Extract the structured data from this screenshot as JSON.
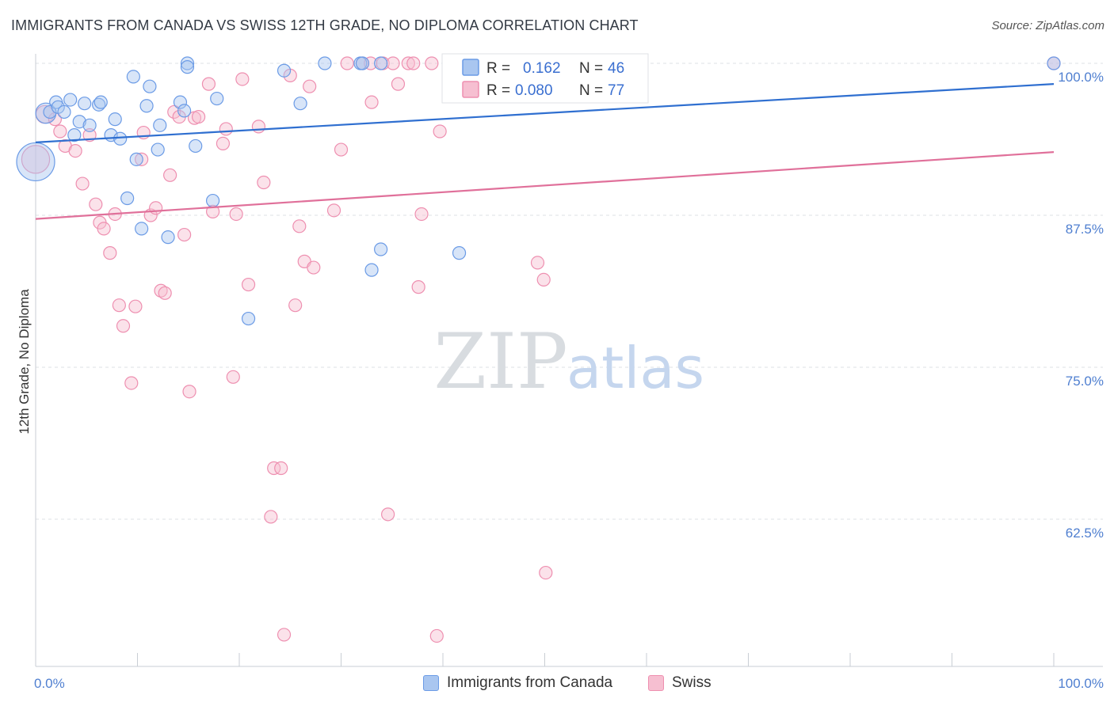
{
  "title": "IMMIGRANTS FROM CANADA VS SWISS 12TH GRADE, NO DIPLOMA CORRELATION CHART",
  "source": "Source: ZipAtlas.com",
  "watermark": {
    "zip": "ZIP",
    "atlas": "atlas"
  },
  "colors": {
    "blue": "#6b9be6",
    "blue_fill": "#a9c6f0",
    "blue_line": "#2f6fd0",
    "pink": "#ee8fb0",
    "pink_fill": "#f6bfd1",
    "pink_line": "#e0709a",
    "tick_label": "#4f7fd0",
    "grid": "#dde1e6"
  },
  "legend": {
    "rows": [
      {
        "r_label": "R =",
        "r_value": "0.162",
        "n_label": "N =",
        "n_value": "46"
      },
      {
        "r_label": "R =",
        "r_value": "0.080",
        "n_label": "N =",
        "n_value": "77"
      }
    ]
  },
  "chart_data": {
    "type": "scatter",
    "title": "IMMIGRANTS FROM CANADA VS SWISS 12TH GRADE, NO DIPLOMA CORRELATION CHART",
    "xlabel": "",
    "ylabel": "12th Grade, No Diploma",
    "xlim": [
      0,
      100
    ],
    "ylim": [
      50.5,
      101
    ],
    "x_tick_labels": [
      "0.0%",
      "100.0%"
    ],
    "y_ticks": [
      62.5,
      75.0,
      87.5,
      100.0
    ],
    "y_tick_labels": [
      "62.5%",
      "75.0%",
      "87.5%",
      "100.0%"
    ],
    "grid": true,
    "legend_placement": "top-center",
    "series": [
      {
        "name": "Immigrants from Canada",
        "R": 0.162,
        "N": 46,
        "trend": {
          "x": [
            0,
            100
          ],
          "y": [
            93.5,
            98.3
          ]
        },
        "points": [
          [
            0,
            91.9,
            3
          ],
          [
            1,
            95.9,
            1.6
          ],
          [
            1.4,
            96.0,
            1
          ],
          [
            2,
            96.8,
            1
          ],
          [
            2.2,
            96.4,
            1
          ],
          [
            2.8,
            96.0,
            1
          ],
          [
            3.4,
            97.0,
            1
          ],
          [
            3.8,
            94.1,
            1
          ],
          [
            4.3,
            95.2,
            1
          ],
          [
            4.8,
            96.7,
            1
          ],
          [
            5.3,
            94.9,
            1
          ],
          [
            6.2,
            96.6,
            1
          ],
          [
            6.4,
            96.8,
            1
          ],
          [
            7.4,
            94.1,
            1
          ],
          [
            7.8,
            95.4,
            1
          ],
          [
            8.3,
            93.8,
            1
          ],
          [
            9.0,
            88.9,
            1
          ],
          [
            9.6,
            98.9,
            1
          ],
          [
            9.9,
            92.1,
            1
          ],
          [
            10.4,
            86.4,
            1
          ],
          [
            10.9,
            96.5,
            1
          ],
          [
            11.2,
            98.1,
            1
          ],
          [
            12.0,
            92.9,
            1
          ],
          [
            12.2,
            94.9,
            1
          ],
          [
            13.0,
            85.7,
            1
          ],
          [
            14.2,
            96.8,
            1
          ],
          [
            14.6,
            96.1,
            1
          ],
          [
            14.9,
            100.0,
            1
          ],
          [
            14.9,
            99.7,
            1
          ],
          [
            15.7,
            93.2,
            1
          ],
          [
            17.4,
            88.7,
            1
          ],
          [
            17.8,
            97.1,
            1
          ],
          [
            20.9,
            79.0,
            1
          ],
          [
            24.4,
            99.4,
            1
          ],
          [
            26.0,
            96.7,
            1
          ],
          [
            28.4,
            100,
            1
          ],
          [
            31.9,
            100,
            1
          ],
          [
            32.1,
            100,
            1
          ],
          [
            33.9,
            100,
            1
          ],
          [
            33.0,
            83.0,
            1
          ],
          [
            33.9,
            84.7,
            1
          ],
          [
            41.0,
            100,
            1
          ],
          [
            41.6,
            84.4,
            1
          ],
          [
            46.5,
            100,
            1
          ],
          [
            49.5,
            100,
            1
          ],
          [
            100,
            100,
            1
          ]
        ]
      },
      {
        "name": "Swiss",
        "R": 0.08,
        "N": 77,
        "trend": {
          "x": [
            0,
            100
          ],
          "y": [
            87.2,
            92.7
          ]
        },
        "points": [
          [
            0,
            92.1,
            2.2
          ],
          [
            0.9,
            95.8,
            1.4
          ],
          [
            1.9,
            95.4,
            1
          ],
          [
            2.4,
            94.4,
            1
          ],
          [
            2.9,
            93.2,
            1
          ],
          [
            3.9,
            92.8,
            1
          ],
          [
            4.6,
            90.1,
            1
          ],
          [
            5.3,
            94.1,
            1
          ],
          [
            5.9,
            88.4,
            1
          ],
          [
            6.3,
            86.9,
            1
          ],
          [
            6.7,
            86.4,
            1
          ],
          [
            7.3,
            84.4,
            1
          ],
          [
            7.8,
            87.6,
            1
          ],
          [
            8.2,
            80.1,
            1
          ],
          [
            8.6,
            78.4,
            1
          ],
          [
            9.4,
            73.7,
            1
          ],
          [
            9.8,
            80.0,
            1
          ],
          [
            10.4,
            92.1,
            1
          ],
          [
            10.6,
            94.3,
            1
          ],
          [
            11.3,
            87.5,
            1
          ],
          [
            11.8,
            88.1,
            1
          ],
          [
            12.3,
            81.3,
            1
          ],
          [
            12.7,
            81.1,
            1
          ],
          [
            13.2,
            90.8,
            1
          ],
          [
            13.6,
            96.0,
            1
          ],
          [
            14.1,
            95.6,
            1
          ],
          [
            14.6,
            85.9,
            1
          ],
          [
            15.1,
            73.0,
            1
          ],
          [
            15.6,
            95.5,
            1
          ],
          [
            16.0,
            95.6,
            1
          ],
          [
            17.0,
            98.3,
            1
          ],
          [
            17.4,
            87.8,
            1
          ],
          [
            18.4,
            93.4,
            1
          ],
          [
            18.7,
            94.6,
            1
          ],
          [
            19.4,
            74.2,
            1
          ],
          [
            19.7,
            87.6,
            1
          ],
          [
            20.3,
            98.7,
            1
          ],
          [
            20.9,
            81.8,
            1
          ],
          [
            21.9,
            94.8,
            1
          ],
          [
            22.4,
            90.2,
            1
          ],
          [
            23.1,
            62.7,
            1
          ],
          [
            23.4,
            66.7,
            1
          ],
          [
            24.1,
            66.7,
            1
          ],
          [
            24.4,
            53.0,
            1
          ],
          [
            25.0,
            99.0,
            1
          ],
          [
            25.5,
            80.1,
            1
          ],
          [
            25.9,
            86.6,
            1
          ],
          [
            26.4,
            83.7,
            1
          ],
          [
            26.9,
            98.1,
            1
          ],
          [
            27.3,
            83.2,
            1
          ],
          [
            29.3,
            87.9,
            1
          ],
          [
            30.0,
            92.9,
            1
          ],
          [
            30.6,
            100,
            1
          ],
          [
            32.1,
            100,
            1
          ],
          [
            32.9,
            100,
            1
          ],
          [
            33.0,
            96.8,
            1
          ],
          [
            34.1,
            100,
            1
          ],
          [
            34.6,
            62.9,
            1
          ],
          [
            35.1,
            100,
            1
          ],
          [
            35.6,
            98.3,
            1
          ],
          [
            36.6,
            100,
            1
          ],
          [
            37.1,
            100,
            1
          ],
          [
            37.6,
            81.6,
            1
          ],
          [
            37.9,
            87.6,
            1
          ],
          [
            38.9,
            100,
            1
          ],
          [
            39.4,
            52.9,
            1
          ],
          [
            39.7,
            94.4,
            1
          ],
          [
            40.9,
            100,
            1
          ],
          [
            42.9,
            100,
            1
          ],
          [
            44.0,
            100,
            1
          ],
          [
            46.7,
            100,
            1
          ],
          [
            47.9,
            100,
            1
          ],
          [
            49.3,
            83.6,
            1
          ],
          [
            49.9,
            82.2,
            1
          ],
          [
            50.1,
            58.1,
            1
          ],
          [
            52.0,
            100,
            1
          ],
          [
            100,
            100,
            1
          ]
        ]
      }
    ]
  },
  "bottom_legend": [
    {
      "label": "Immigrants from Canada"
    },
    {
      "label": "Swiss"
    }
  ]
}
